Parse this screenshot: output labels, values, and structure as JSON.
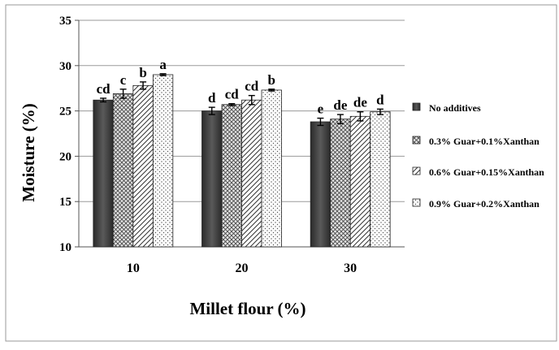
{
  "chart_data": {
    "type": "bar",
    "title": "",
    "xlabel": "Millet flour (%)",
    "ylabel": "Moisture (%)",
    "ylim": [
      10,
      35
    ],
    "yticks": [
      10,
      15,
      20,
      25,
      30,
      35
    ],
    "categories": [
      "10",
      "20",
      "30"
    ],
    "grid": true,
    "legend_position": "right",
    "series": [
      {
        "name": "No additives",
        "values": [
          26.2,
          25.0,
          23.8
        ],
        "errors": [
          0.2,
          0.4,
          0.4
        ],
        "letters": [
          "cd",
          "d",
          "e"
        ],
        "fill": "#3a3a3a",
        "pattern": "solid"
      },
      {
        "name": "0.3% Guar+0.1%Xanthan",
        "values": [
          26.9,
          25.7,
          24.1
        ],
        "errors": [
          0.5,
          0.1,
          0.5
        ],
        "letters": [
          "c",
          "cd",
          "de"
        ],
        "fill": "#d9d9d9",
        "pattern": "crosshatch"
      },
      {
        "name": "0.6% Guar+0.15%Xanthan",
        "values": [
          27.8,
          26.2,
          24.4
        ],
        "errors": [
          0.4,
          0.5,
          0.5
        ],
        "letters": [
          "b",
          "cd",
          "de"
        ],
        "fill": "#ffffff",
        "pattern": "diagonal"
      },
      {
        "name": "0.9% Guar+0.2%Xanthan",
        "values": [
          29.0,
          27.3,
          24.9
        ],
        "errors": [
          0.1,
          0.1,
          0.3
        ],
        "letters": [
          "a",
          "b",
          "d"
        ],
        "fill": "#ffffff",
        "pattern": "dots"
      }
    ]
  }
}
